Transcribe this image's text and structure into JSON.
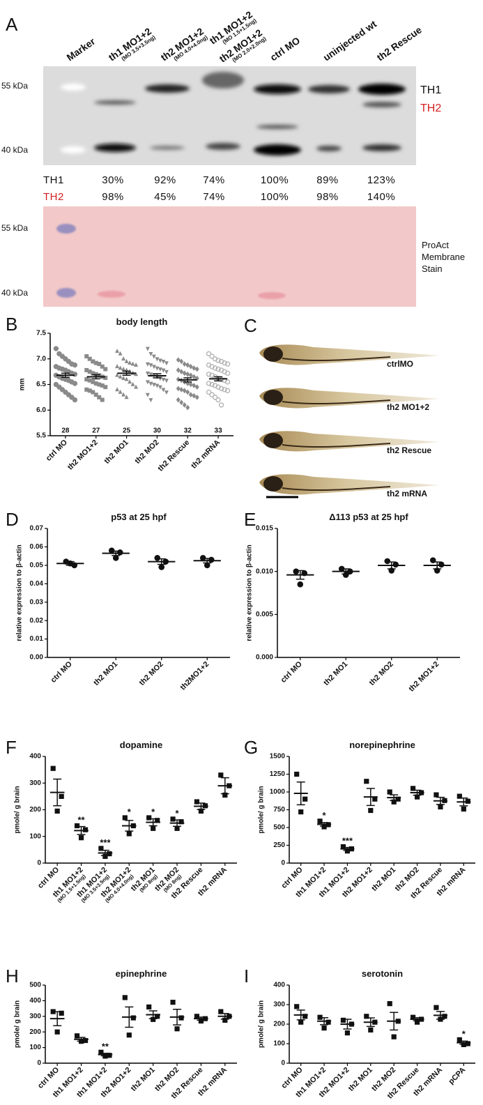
{
  "panel_a": {
    "letter": "A",
    "lanes": [
      {
        "name": "Marker"
      },
      {
        "name": "th1 MO1+2",
        "note": "(MO 3.5+3.5ng)"
      },
      {
        "name": "th2 MO1+2",
        "note": "(MO 4.0+4.0ng)"
      },
      {
        "name": "th1 MO1+2",
        "note": "(MO 1.5+1.5ng)",
        "name2": "th2 MO1+2",
        "note2": "(MO 2.0+2.0ng)"
      },
      {
        "name": "ctrl MO"
      },
      {
        "name": "uninjected wt"
      },
      {
        "name": "th2 Rescue"
      }
    ],
    "blot_markers": [
      "55 kDa",
      "40 kDa"
    ],
    "bands": [
      "TH1",
      "TH2"
    ],
    "quantification": [
      {
        "label": "TH1",
        "values": [
          "30%",
          "92%",
          "74%",
          "100%",
          "89%",
          "123%"
        ]
      },
      {
        "label": "TH2",
        "values": [
          "98%",
          "45%",
          "74%",
          "100%",
          "98%",
          "140%"
        ]
      }
    ],
    "stain_markers": [
      "55 kDa",
      "40 kDa"
    ],
    "stain_label": [
      "ProAct",
      "Membrane",
      "Stain"
    ]
  },
  "panel_c": {
    "letter": "C",
    "labels": [
      "ctrlMO",
      "th2 MO1+2",
      "th2 Rescue",
      "th2 mRNA"
    ]
  },
  "chart_data": [
    {
      "type": "dotplot",
      "letter": "B",
      "title": "body length",
      "ylabel": "mm",
      "categories": [
        "ctrl MO",
        "th2 MO1+2",
        "th2 MO1",
        "th2 MO2",
        "th2 Rescue",
        "th2 mRNA"
      ],
      "counts": [
        28,
        27,
        25,
        30,
        32,
        33
      ],
      "markers": [
        "circle",
        "square",
        "triangle",
        "triangle-down",
        "diamond",
        "open-circle"
      ],
      "colors": [
        "#8a8a8a",
        "#8a8a8a",
        "#8a8a8a",
        "#8a8a8a",
        "#8a8a8a",
        "#b4b4b4"
      ],
      "points": [
        [
          7.2,
          7.1,
          7.05,
          7.0,
          6.95,
          6.9,
          6.88,
          6.85,
          6.82,
          6.8,
          6.78,
          6.75,
          6.72,
          6.7,
          6.68,
          6.65,
          6.62,
          6.6,
          6.58,
          6.55,
          6.52,
          6.5,
          6.45,
          6.4,
          6.35,
          6.3,
          6.25,
          6.2
        ],
        [
          7.05,
          7.0,
          6.95,
          6.92,
          6.9,
          6.85,
          6.8,
          6.78,
          6.75,
          6.72,
          6.7,
          6.68,
          6.65,
          6.63,
          6.6,
          6.58,
          6.55,
          6.52,
          6.5,
          6.48,
          6.45,
          6.4,
          6.38,
          6.35,
          6.3,
          6.25,
          6.2
        ],
        [
          7.15,
          7.1,
          7.0,
          6.95,
          6.92,
          6.9,
          6.88,
          6.85,
          6.82,
          6.8,
          6.78,
          6.75,
          6.72,
          6.7,
          6.68,
          6.65,
          6.62,
          6.6,
          6.55,
          6.5,
          6.45,
          6.4,
          6.35,
          6.3,
          6.25
        ],
        [
          7.2,
          7.1,
          7.05,
          7.0,
          6.97,
          6.95,
          6.92,
          6.9,
          6.88,
          6.85,
          6.82,
          6.8,
          6.78,
          6.75,
          6.72,
          6.7,
          6.68,
          6.65,
          6.62,
          6.6,
          6.58,
          6.55,
          6.52,
          6.5,
          6.48,
          6.45,
          6.4,
          6.35,
          6.3,
          6.2
        ],
        [
          6.98,
          6.95,
          6.9,
          6.88,
          6.85,
          6.82,
          6.8,
          6.78,
          6.75,
          6.72,
          6.7,
          6.68,
          6.65,
          6.62,
          6.6,
          6.58,
          6.55,
          6.52,
          6.5,
          6.48,
          6.45,
          6.42,
          6.4,
          6.38,
          6.35,
          6.3,
          6.28,
          6.25,
          6.2,
          6.15,
          6.1,
          6.05
        ],
        [
          7.1,
          7.05,
          7.0,
          6.97,
          6.95,
          6.92,
          6.9,
          6.88,
          6.85,
          6.82,
          6.8,
          6.78,
          6.75,
          6.72,
          6.7,
          6.68,
          6.65,
          6.62,
          6.6,
          6.58,
          6.55,
          6.52,
          6.5,
          6.48,
          6.45,
          6.42,
          6.4,
          6.38,
          6.35,
          6.3,
          6.25,
          6.2,
          6.1
        ]
      ],
      "mean": [
        6.68,
        6.65,
        6.72,
        6.67,
        6.59,
        6.61
      ],
      "sem": [
        0.04,
        0.04,
        0.04,
        0.04,
        0.04,
        0.04
      ],
      "ylim": [
        5.5,
        7.5
      ],
      "yticks": [
        5.5,
        {
          "value": 6,
          "label": "6.0"
        },
        6.5,
        {
          "value": 7,
          "label": "7.0"
        },
        7.5
      ]
    },
    {
      "type": "dotplot",
      "letter": "D",
      "title": "p53 at 25 hpf",
      "ylabel": "relative expression to β-actin",
      "categories": [
        "ctrl MO",
        "th2 MO1",
        "th2 MO2",
        "th2MO1+2"
      ],
      "marker": "circle",
      "color": "#111111",
      "points": [
        [
          0.052,
          0.05,
          0.051
        ],
        [
          0.058,
          0.057,
          0.054
        ],
        [
          0.054,
          0.052,
          0.049
        ],
        [
          0.054,
          0.053,
          0.05
        ]
      ],
      "mean": [
        0.051,
        0.0565,
        0.052,
        0.0525
      ],
      "sem": [
        0.001,
        0.0012,
        0.0015,
        0.0012
      ],
      "ylim": [
        0,
        0.07
      ],
      "yticks": [
        {
          "value": 0,
          "label": "0.00"
        },
        0.01,
        0.02,
        0.03,
        0.04,
        0.05,
        0.06,
        0.07
      ]
    },
    {
      "type": "dotplot",
      "letter": "E",
      "title": "Δ113 p53 at 25 hpf",
      "ylabel": "relative expression to β-actin",
      "categories": [
        "ctrl MO",
        "th2 MO1",
        "th2 MO2",
        "th2 MO1+2"
      ],
      "marker": "circle",
      "color": "#111111",
      "points": [
        [
          0.01,
          0.0098,
          0.0085
        ],
        [
          0.0103,
          0.01,
          0.0096
        ],
        [
          0.0112,
          0.0108,
          0.0101
        ],
        [
          0.0113,
          0.0108,
          0.0101
        ]
      ],
      "mean": [
        0.0096,
        0.01,
        0.0107,
        0.0107
      ],
      "sem": [
        0.0005,
        0.0003,
        0.0004,
        0.0004
      ],
      "ylim": [
        0,
        0.015
      ],
      "yticks": [
        {
          "value": 0,
          "label": "0.000"
        },
        0.005,
        {
          "value": 0.01,
          "label": "0.010"
        },
        0.015
      ]
    },
    {
      "type": "dotplot",
      "letter": "F",
      "title": "dopamine",
      "ylabel": "pmole/ g brain",
      "categories": [
        "ctrl MO",
        "th1 MO1+2",
        "th1 MO1+2",
        "th2 MO1+2",
        "th2 MO1",
        "th2 MO2",
        "th2 Rescue",
        "th2 mRNA"
      ],
      "category_notes": [
        null,
        "(MO 1.5+1.5ng)",
        "(MO 3.5+3.5ng)",
        "(MO 4.0+4.0ng)",
        "(MO 8ng)",
        "(MO 8ng)",
        null,
        null
      ],
      "marker": "square",
      "color": "#111111",
      "points": [
        [
          355,
          250,
          195
        ],
        [
          140,
          125,
          95
        ],
        [
          55,
          35,
          25
        ],
        [
          170,
          140,
          110
        ],
        [
          170,
          160,
          130
        ],
        [
          165,
          155,
          130
        ],
        [
          230,
          215,
          195
        ],
        [
          330,
          290,
          255
        ]
      ],
      "mean": [
        265,
        122,
        38,
        140,
        153,
        150,
        213,
        290
      ],
      "sem": [
        50,
        15,
        10,
        20,
        13,
        12,
        12,
        30
      ],
      "annotations": [
        null,
        "**",
        "***",
        "*",
        "*",
        "*",
        null,
        null
      ],
      "ylim": [
        0,
        400
      ],
      "yticks": [
        0,
        100,
        200,
        300,
        400
      ]
    },
    {
      "type": "dotplot",
      "letter": "G",
      "title": "norepinephrine",
      "ylabel": "pmole/ g brain",
      "categories": [
        "ctrl MO",
        "th1 MO1+2",
        "th1 MO1+2",
        "th2 MO1+2",
        "th2 MO1",
        "th2 MO2",
        "th2 Rescue",
        "th2 mRNA"
      ],
      "marker": "square",
      "color": "#111111",
      "points": [
        [
          1250,
          900,
          720
        ],
        [
          590,
          540,
          510
        ],
        [
          230,
          200,
          170
        ],
        [
          1150,
          900,
          740
        ],
        [
          1000,
          900,
          860
        ],
        [
          1050,
          990,
          930
        ],
        [
          960,
          880,
          790
        ],
        [
          940,
          870,
          760
        ]
      ],
      "mean": [
        980,
        545,
        200,
        930,
        920,
        990,
        875,
        860
      ],
      "sem": [
        160,
        25,
        20,
        120,
        40,
        35,
        50,
        55
      ],
      "annotations": [
        null,
        "*",
        "***",
        null,
        null,
        null,
        null,
        null
      ],
      "ylim": [
        0,
        1500
      ],
      "yticks": [
        0,
        250,
        500,
        750,
        1000,
        1250,
        1500
      ]
    },
    {
      "type": "dotplot",
      "letter": "H",
      "title": "epinephrine",
      "ylabel": "pmole/ g brain",
      "categories": [
        "ctrl MO",
        "th1 MO1+2",
        "th1 MO1+2",
        "th2 MO1+2",
        "th2 MO1",
        "th2 MO2",
        "th2 Rescue",
        "th2 mRNA"
      ],
      "marker": "square",
      "color": "#111111",
      "points": [
        [
          330,
          320,
          200
        ],
        [
          175,
          145,
          140
        ],
        [
          70,
          50,
          45
        ],
        [
          420,
          290,
          180
        ],
        [
          360,
          300,
          280
        ],
        [
          390,
          290,
          220
        ],
        [
          300,
          285,
          270
        ],
        [
          330,
          300,
          275
        ]
      ],
      "mean": [
        285,
        153,
        55,
        295,
        310,
        295,
        285,
        300
      ],
      "sem": [
        45,
        12,
        8,
        65,
        25,
        50,
        10,
        18
      ],
      "annotations": [
        null,
        null,
        "**",
        null,
        null,
        null,
        null,
        null
      ],
      "ylim": [
        0,
        500
      ],
      "yticks": [
        0,
        100,
        200,
        300,
        400,
        500
      ]
    },
    {
      "type": "dotplot",
      "letter": "I",
      "title": "serotonin",
      "ylabel": "pmole/ g brain",
      "categories": [
        "ctrl MO",
        "th1 MO1+2",
        "th2 MO1+2",
        "th2 MO1",
        "th2 MO2",
        "th2 Rescue",
        "th2 mRNA",
        "pCPA"
      ],
      "marker": "square",
      "color": "#111111",
      "points": [
        [
          290,
          240,
          210
        ],
        [
          235,
          210,
          180
        ],
        [
          220,
          200,
          155
        ],
        [
          240,
          210,
          170
        ],
        [
          305,
          215,
          135
        ],
        [
          235,
          225,
          210
        ],
        [
          285,
          240,
          225
        ],
        [
          120,
          100,
          95
        ]
      ],
      "mean": [
        247,
        215,
        200,
        210,
        215,
        225,
        245,
        105
      ],
      "sem": [
        25,
        18,
        25,
        22,
        45,
        8,
        20,
        8
      ],
      "annotations": [
        null,
        null,
        null,
        null,
        null,
        null,
        null,
        "*"
      ],
      "ylim": [
        0,
        400
      ],
      "yticks": [
        0,
        100,
        200,
        300,
        400
      ]
    }
  ]
}
